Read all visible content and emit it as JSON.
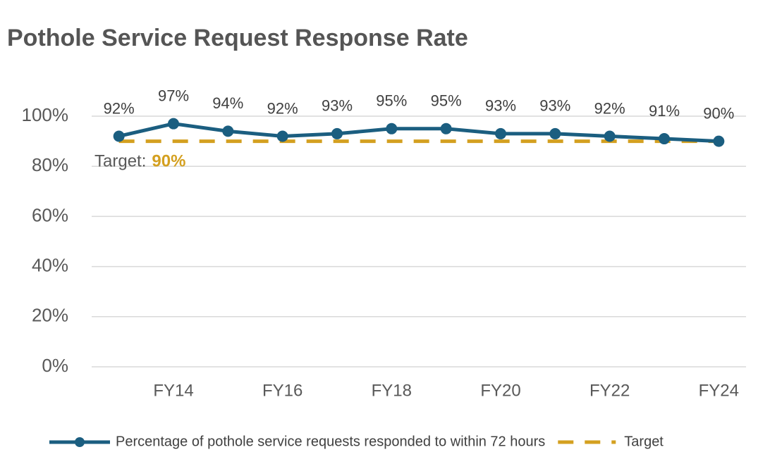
{
  "chart_data": {
    "type": "line",
    "title": "Pothole Service Request Response Rate",
    "categories": [
      null,
      "FY14",
      null,
      "FY16",
      null,
      "FY18",
      null,
      "FY20",
      null,
      "FY22",
      null,
      "FY24"
    ],
    "series": [
      {
        "name": "Percentage of pothole service requests responded to within 72 hours",
        "color": "#1b5e80",
        "values": [
          92,
          97,
          94,
          92,
          93,
          95,
          95,
          93,
          93,
          92,
          91,
          90
        ],
        "value_labels": [
          "92%",
          "97%",
          "94%",
          "92%",
          "93%",
          "95%",
          "95%",
          "93%",
          "93%",
          "92%",
          "91%",
          "90%"
        ]
      },
      {
        "name": "Target",
        "color": "#d4a020",
        "dashed": true,
        "values": [
          90,
          90,
          90,
          90,
          90,
          90,
          90,
          90,
          90,
          90,
          90,
          90
        ]
      }
    ],
    "annotation": {
      "text": "Target:",
      "value": "90%"
    },
    "ylim": [
      0,
      100
    ],
    "yticks": [
      {
        "value": 0,
        "label": "0%"
      },
      {
        "value": 20,
        "label": "20%"
      },
      {
        "value": 40,
        "label": "40%"
      },
      {
        "value": 60,
        "label": "60%"
      },
      {
        "value": 80,
        "label": "80%"
      },
      {
        "value": 100,
        "label": "100%"
      }
    ],
    "grid": true,
    "legend": "bottom"
  }
}
